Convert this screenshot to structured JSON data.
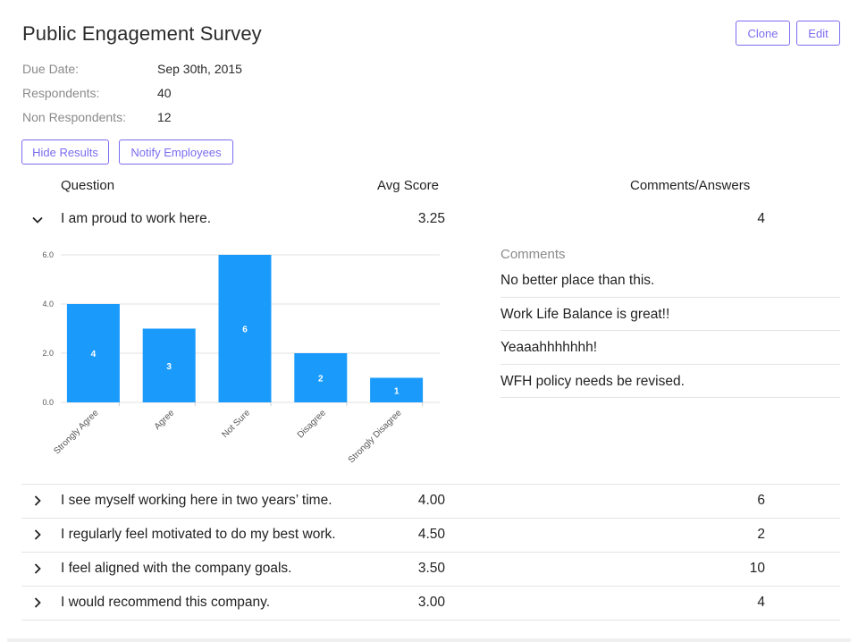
{
  "survey": {
    "title": "Public Engagement Survey",
    "meta": [
      {
        "label": "Due Date:",
        "value": "Sep 30th, 2015"
      },
      {
        "label": "Respondents:",
        "value": "40"
      },
      {
        "label": "Non Respondents:",
        "value": "12"
      }
    ]
  },
  "header_buttons": {
    "clone": "Clone",
    "edit": "Edit"
  },
  "actions": {
    "hide_results": "Hide Results",
    "notify": "Notify Employees"
  },
  "table": {
    "headers": {
      "question": "Question",
      "avg": "Avg Score",
      "comments": "Comments/Answers"
    },
    "rows": [
      {
        "question": "I am proud to work here.",
        "avg": "3.25",
        "count": "4",
        "expanded": true
      },
      {
        "question": "I see myself working here in two years’ time.",
        "avg": "4.00",
        "count": "6",
        "expanded": false
      },
      {
        "question": "I regularly feel motivated to do my best work.",
        "avg": "4.50",
        "count": "2",
        "expanded": false
      },
      {
        "question": "I feel aligned with the company goals.",
        "avg": "3.50",
        "count": "10",
        "expanded": false
      },
      {
        "question": "I would recommend this company.",
        "avg": "3.00",
        "count": "4",
        "expanded": false
      }
    ]
  },
  "comments": {
    "title": "Comments",
    "items": [
      "No better place than this.",
      "Work Life Balance is great!!",
      "Yeaaahhhhhhh!",
      "WFH policy needs be revised."
    ]
  },
  "colors": {
    "accent": "#7b6cf0",
    "bar": "#1a9bfc",
    "bar_label": "#ffffff"
  },
  "chart_data": {
    "type": "bar",
    "categories": [
      "Strongly Agree",
      "Agree",
      "Not Sure",
      "Disagree",
      "Strongly Disagree"
    ],
    "values": [
      4,
      3,
      6,
      2,
      1
    ],
    "ylim": [
      0,
      6
    ],
    "yticks": [
      "0.0",
      "2.0",
      "4.0",
      "6.0"
    ],
    "title": "",
    "xlabel": "",
    "ylabel": "",
    "grid": true
  }
}
